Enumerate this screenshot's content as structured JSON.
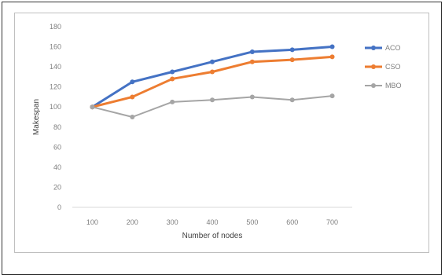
{
  "chart_data": {
    "type": "line",
    "title": "",
    "xlabel": "Number of nodes",
    "ylabel": "Makespan",
    "categories": [
      "100",
      "200",
      "300",
      "400",
      "500",
      "600",
      "700"
    ],
    "ylim": [
      0,
      180
    ],
    "yticks": [
      "0",
      "20",
      "40",
      "60",
      "80",
      "100",
      "120",
      "140",
      "160",
      "180"
    ],
    "grid": false,
    "legend_position": "right",
    "series": [
      {
        "name": "ACO",
        "color": "#4472c4",
        "values": [
          100,
          125,
          135,
          145,
          155,
          157,
          160
        ]
      },
      {
        "name": "CSO",
        "color": "#ed7d31",
        "values": [
          100,
          110,
          128,
          135,
          145,
          147,
          150
        ]
      },
      {
        "name": "MBO",
        "color": "#a5a5a5",
        "values": [
          100,
          90,
          105,
          107,
          110,
          107,
          111
        ]
      }
    ]
  }
}
